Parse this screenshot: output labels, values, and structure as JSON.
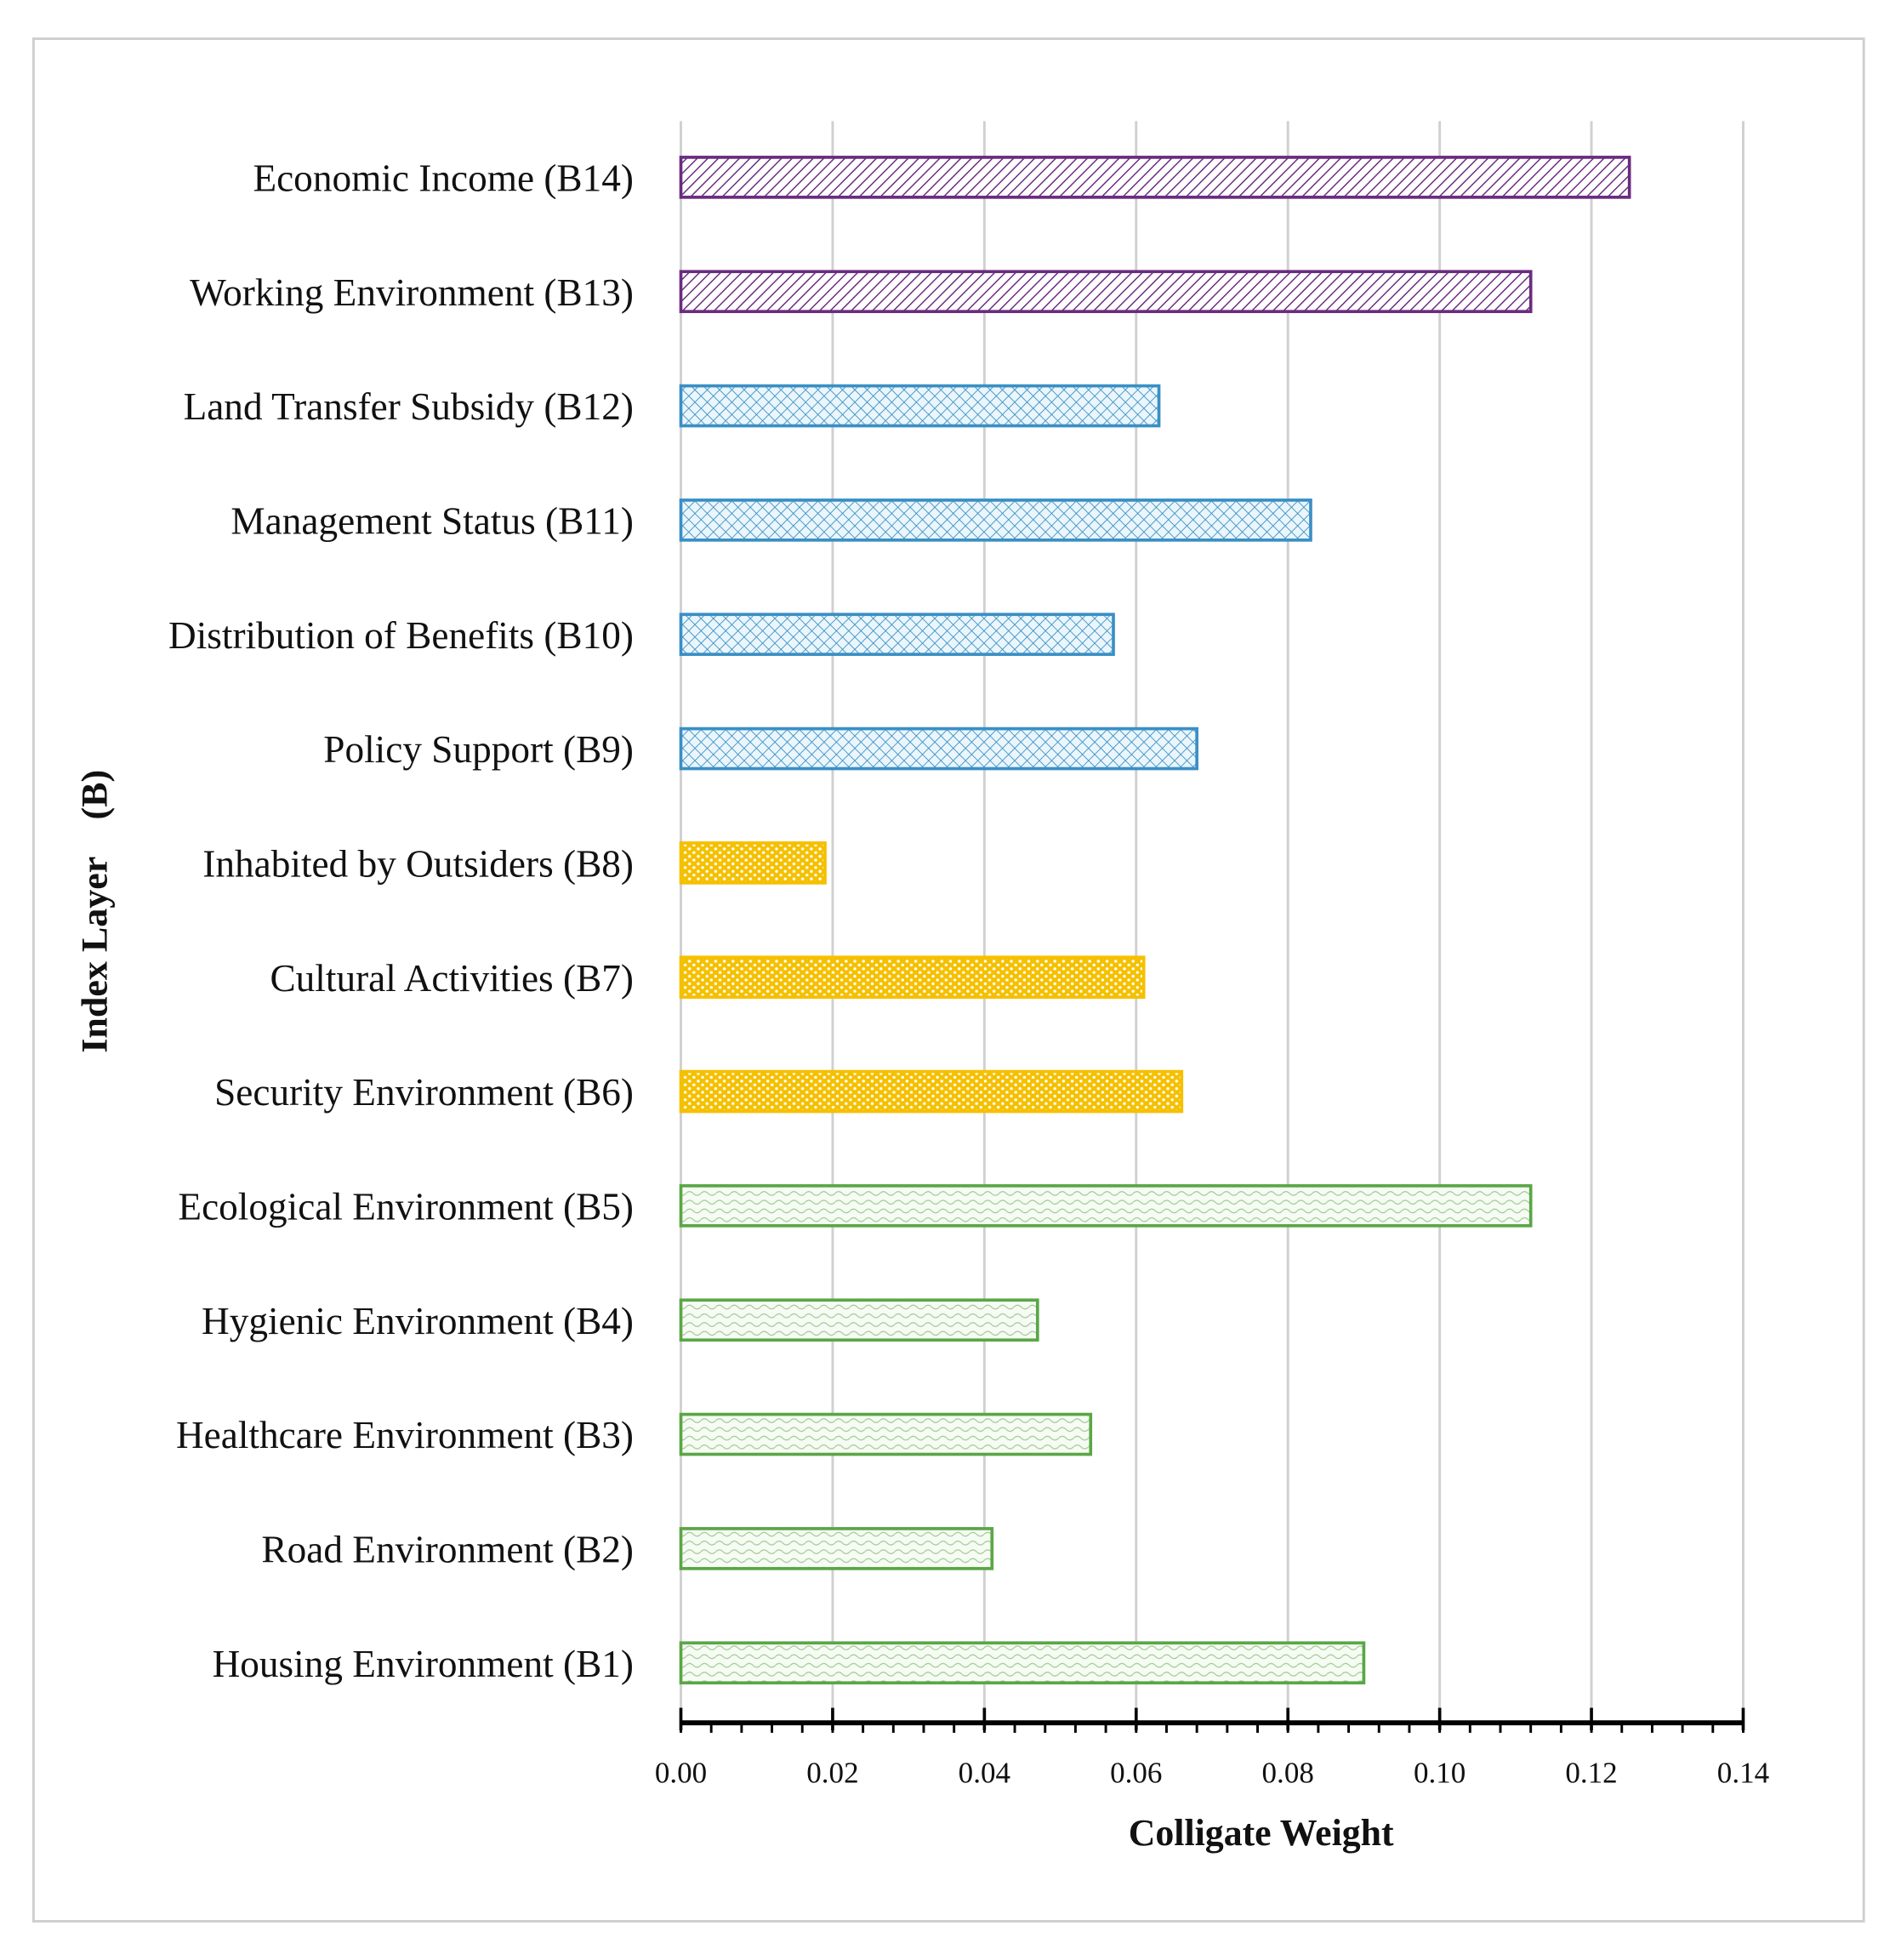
{
  "chart_data": {
    "type": "bar",
    "orientation": "horizontal",
    "title": "",
    "xlabel": "Colligate Weight",
    "ylabel": "Index Layer    (B)",
    "xlim": [
      0,
      0.14
    ],
    "xticks": [
      "0.00",
      "0.02",
      "0.04",
      "0.06",
      "0.08",
      "0.10",
      "0.12",
      "0.14"
    ],
    "grid": true,
    "categories": [
      "Economic Income (B14)",
      "Working Environment (B13)",
      "Land Transfer Subsidy (B12)",
      "Management Status (B11)",
      "Distribution of Benefits (B10)",
      "Policy Support (B9)",
      "Inhabited by Outsiders (B8)",
      "Cultural Activities (B7)",
      "Security Environment (B6)",
      "Ecological Environment (B5)",
      "Hygienic Environment (B4)",
      "Healthcare Environment (B3)",
      "Road Environment (B2)",
      "Housing Environment (B1)"
    ],
    "values": [
      0.125,
      0.112,
      0.063,
      0.083,
      0.057,
      0.068,
      0.019,
      0.061,
      0.066,
      0.112,
      0.047,
      0.054,
      0.041,
      0.09
    ],
    "groups": [
      "purple",
      "purple",
      "blue",
      "blue",
      "blue",
      "blue",
      "yellow",
      "yellow",
      "yellow",
      "green",
      "green",
      "green",
      "green",
      "green"
    ],
    "colors": {
      "purple": "#6a2c7e",
      "blue": "#3a8fc4",
      "yellow": "#f5c000",
      "green": "#5aa646"
    }
  }
}
